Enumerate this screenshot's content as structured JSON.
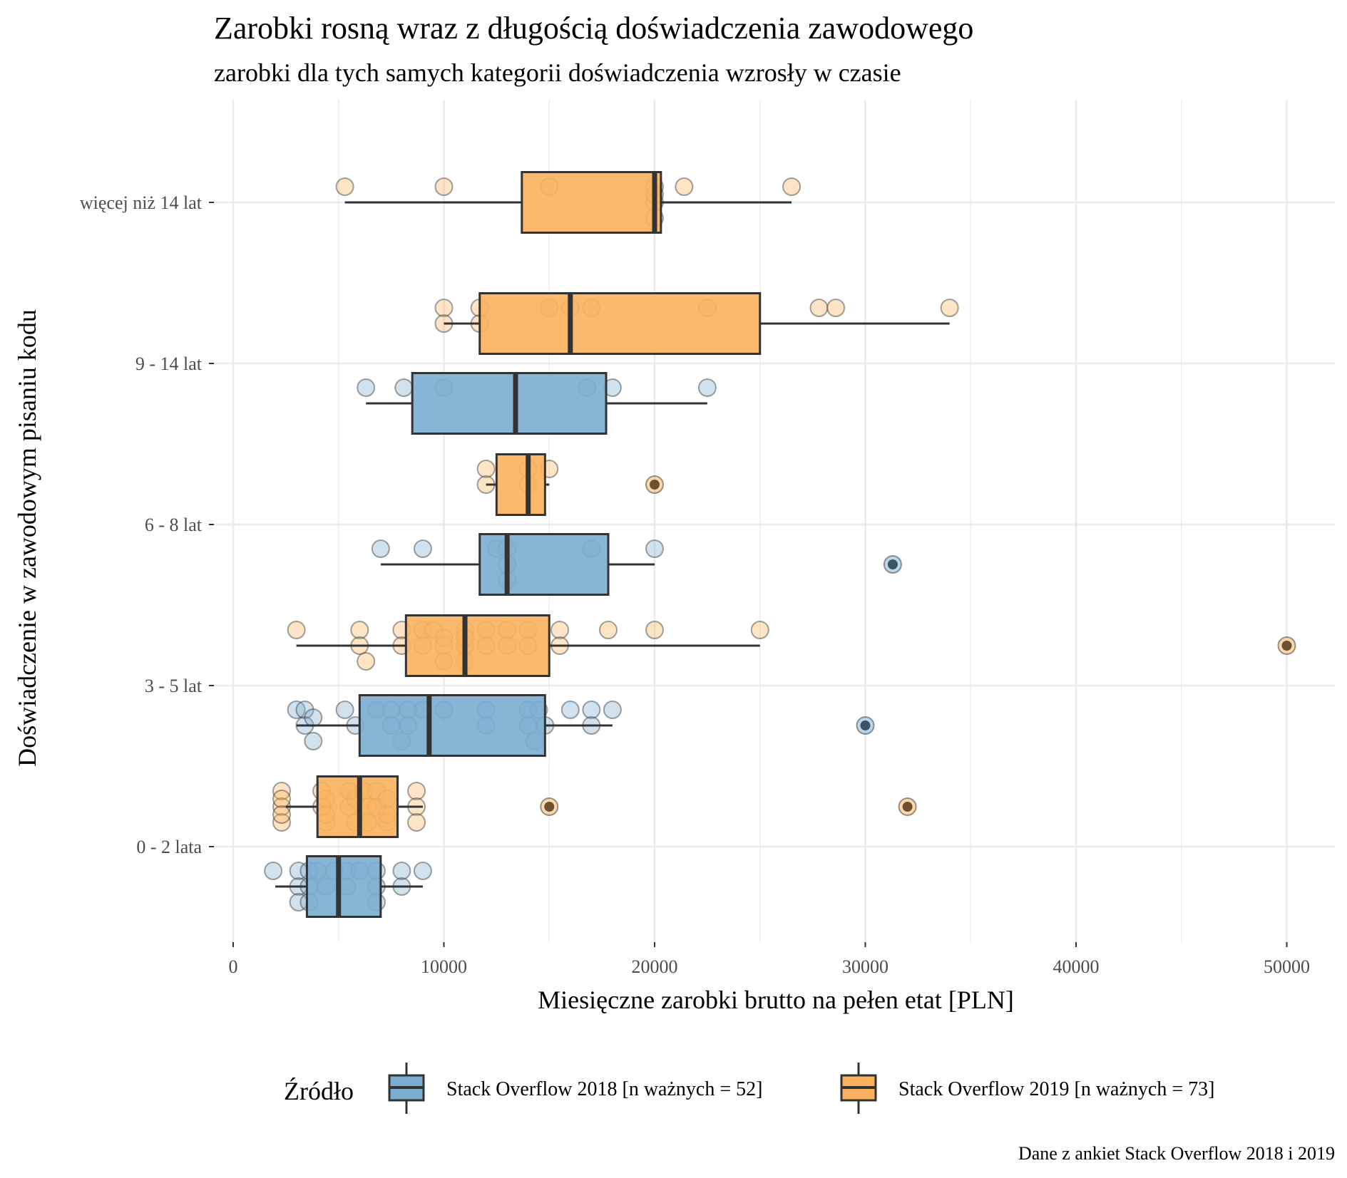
{
  "chart_data": {
    "type": "boxplot",
    "orientation": "horizontal",
    "title": "Zarobki rosną wraz z długością doświadczenia zawodowego",
    "subtitle": "zarobki dla tych samych kategorii doświadczenia wzrosły w czasie",
    "xlabel": "Miesięczne zarobki brutto na pełen etat [PLN]",
    "ylabel": "Doświadczenie w zawodowym pisaniu kodu",
    "caption": "Dane z ankiet Stack Overflow 2018 i 2019",
    "xlim": [
      0,
      52500
    ],
    "xticks": [
      0,
      10000,
      20000,
      30000,
      40000,
      50000
    ],
    "grid": true,
    "legend": {
      "title": "Źródło",
      "position": "bottom",
      "entries": [
        {
          "key": "2018",
          "label": "Stack Overflow 2018 [n ważnych = 52]",
          "color": "#7badd1"
        },
        {
          "key": "2019",
          "label": "Stack Overflow 2019 [n ważnych = 73]",
          "color": "#fbb15d"
        }
      ]
    },
    "categories": [
      "0 - 2 lata",
      "3 - 5 lat",
      "6 - 8 lat",
      "9 - 14 lat",
      "więcej niż 14 lat"
    ],
    "colors": {
      "2018": "#7badd1",
      "2019": "#fbb15d",
      "outline": "#333333"
    },
    "boxes": [
      {
        "category": "0 - 2 lata",
        "source": "2018",
        "lower_whisker": 2000,
        "q1": 3500,
        "median": 5000,
        "q3": 7000,
        "upper_whisker": 9000,
        "outliers": []
      },
      {
        "category": "0 - 2 lata",
        "source": "2019",
        "lower_whisker": 2500,
        "q1": 4000,
        "median": 6000,
        "q3": 7800,
        "upper_whisker": 9000,
        "outliers": [
          15000,
          32000
        ]
      },
      {
        "category": "3 - 5 lat",
        "source": "2018",
        "lower_whisker": 3000,
        "q1": 6000,
        "median": 9300,
        "q3": 14800,
        "upper_whisker": 18000,
        "outliers": [
          30000
        ]
      },
      {
        "category": "3 - 5 lat",
        "source": "2019",
        "lower_whisker": 3000,
        "q1": 8200,
        "median": 11000,
        "q3": 15000,
        "upper_whisker": 25000,
        "outliers": [
          50000
        ]
      },
      {
        "category": "6 - 8 lat",
        "source": "2018",
        "lower_whisker": 7000,
        "q1": 11700,
        "median": 13000,
        "q3": 17800,
        "upper_whisker": 20000,
        "outliers": [
          31300
        ]
      },
      {
        "category": "6 - 8 lat",
        "source": "2019",
        "lower_whisker": 12000,
        "q1": 12500,
        "median": 14000,
        "q3": 14800,
        "upper_whisker": 15000,
        "outliers": [
          20000
        ]
      },
      {
        "category": "9 - 14 lat",
        "source": "2018",
        "lower_whisker": 6300,
        "q1": 8500,
        "median": 13400,
        "q3": 17700,
        "upper_whisker": 22500,
        "outliers": []
      },
      {
        "category": "9 - 14 lat",
        "source": "2019",
        "lower_whisker": 10000,
        "q1": 11700,
        "median": 16000,
        "q3": 25000,
        "upper_whisker": 34000,
        "outliers": []
      },
      {
        "category": "więcej niż 14 lat",
        "source": "2019",
        "lower_whisker": 5300,
        "q1": 13700,
        "median": 20000,
        "q3": 20300,
        "upper_whisker": 26500,
        "outliers": []
      }
    ],
    "points": {
      "0 - 2 lata|2018": [
        1900,
        3100,
        3100,
        3100,
        3600,
        3600,
        3600,
        4000,
        4400,
        4800,
        5400,
        5400,
        6000,
        6800,
        6800,
        6800,
        8000,
        8000,
        9000
      ],
      "0 - 2 lata|2019": [
        2300,
        2300,
        2300,
        2300,
        2300,
        4200,
        4200,
        4400,
        4400,
        4400,
        5500,
        5500,
        5800,
        5800,
        6200,
        6400,
        6400,
        6800,
        6800,
        7300,
        7300,
        7300,
        8700,
        8700,
        8700
      ],
      "3 - 5 lat|2018": [
        3000,
        3400,
        3400,
        3800,
        3800,
        5300,
        5800,
        6800,
        7500,
        7500,
        8000,
        8300,
        8300,
        9000,
        10000,
        12000,
        12000,
        14000,
        14000,
        14300,
        14500,
        14800,
        16000,
        17000,
        17000,
        18000
      ],
      "3 - 5 lat|2019": [
        3000,
        6000,
        6000,
        6300,
        8000,
        8000,
        9000,
        9000,
        9500,
        10000,
        10000,
        10000,
        11000,
        11000,
        11000,
        11000,
        12000,
        12000,
        13000,
        13000,
        14000,
        14000,
        15500,
        15500,
        17800,
        20000,
        25000
      ],
      "6 - 8 lat|2018": [
        7000,
        9000,
        12500,
        13000,
        13000,
        13000,
        17000,
        20000
      ],
      "6 - 8 lat|2019": [
        12000,
        12000,
        14000,
        14000,
        15000
      ],
      "9 - 14 lat|2018": [
        6300,
        8100,
        10000,
        16800,
        18000,
        22500
      ],
      "9 - 14 lat|2019": [
        10000,
        10000,
        11700,
        11700,
        15000,
        16000,
        17000,
        22500,
        27800,
        28600,
        34000
      ],
      "więcej niż 14 lat|2019": [
        5300,
        10000,
        15000,
        20000,
        20000,
        20000,
        20000,
        21400,
        26500
      ]
    }
  }
}
